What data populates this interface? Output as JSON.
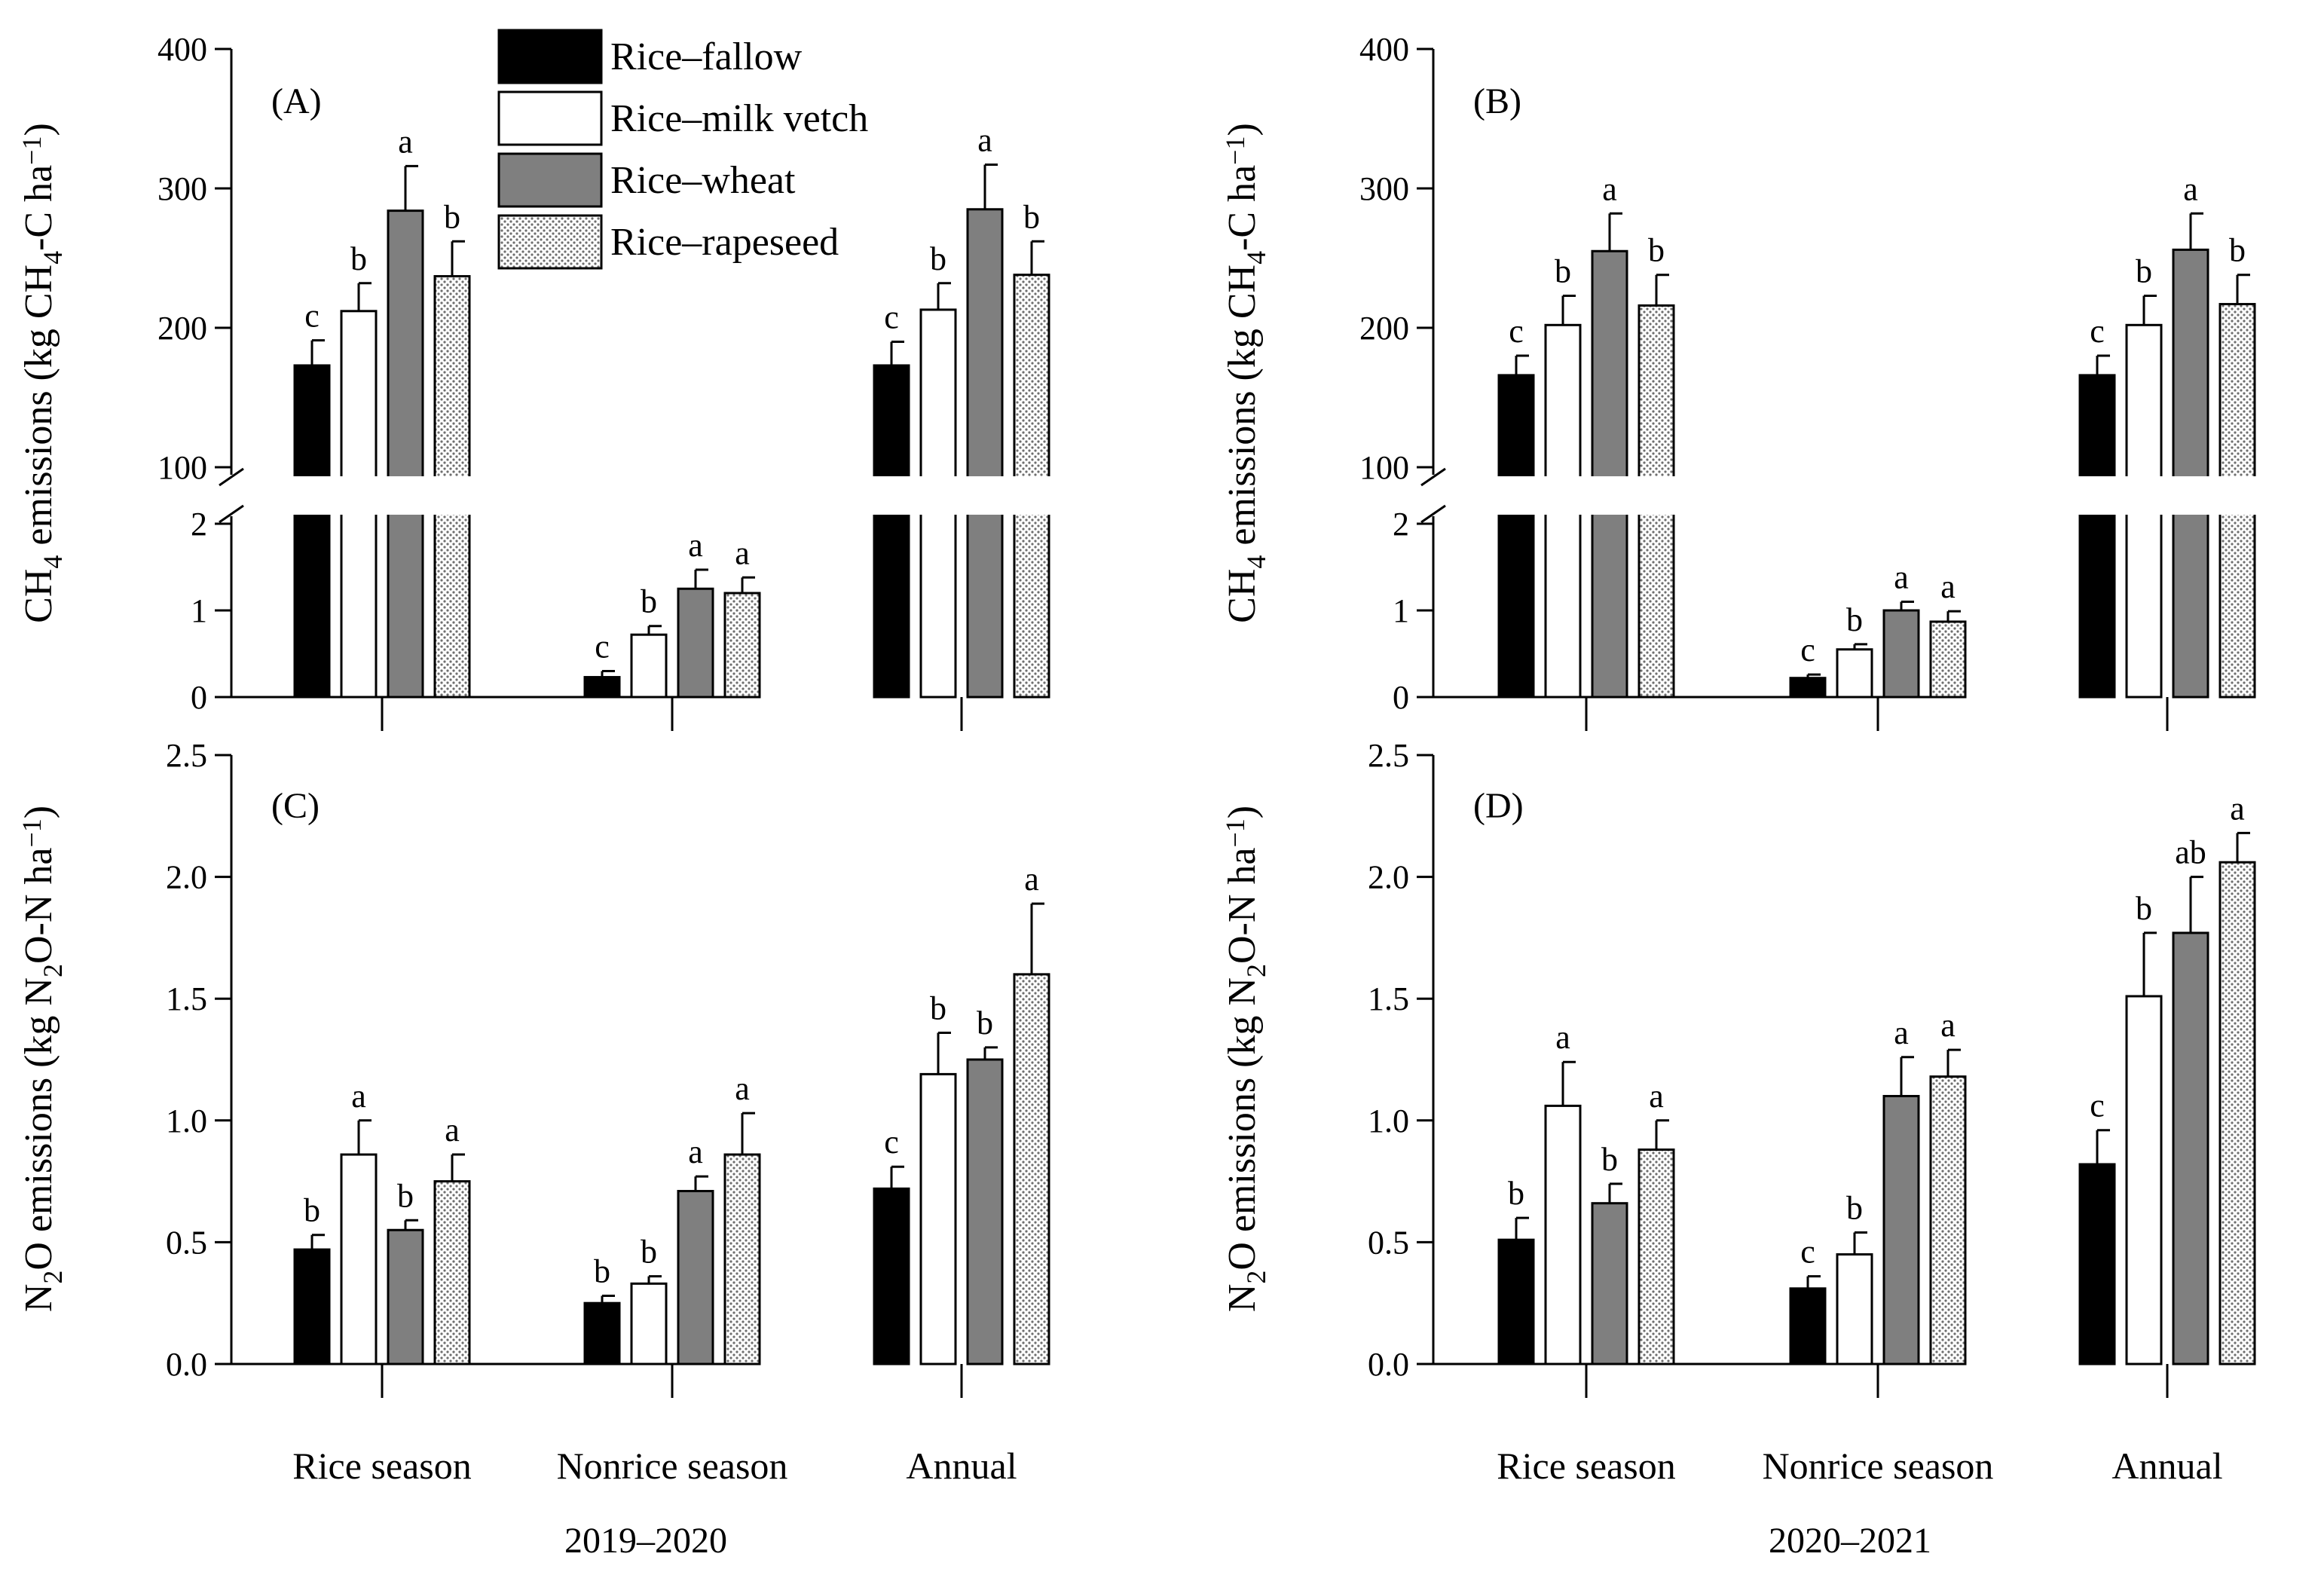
{
  "legend": {
    "items": [
      {
        "label": "Rice–fallow",
        "pattern": "black"
      },
      {
        "label": "Rice–milk vetch",
        "pattern": "white"
      },
      {
        "label": "Rice–wheat",
        "pattern": "gray"
      },
      {
        "label": "Rice–rapeseed",
        "pattern": "dots"
      }
    ]
  },
  "colors": {
    "black": "#000000",
    "white": "#ffffff",
    "gray": "#7f7f7f",
    "dots": "#cfcfcf"
  },
  "axis_labels": {
    "ch4": {
      "pre": "CH",
      "sub1": "4",
      "mid": " emissions (kg CH",
      "sub2": "4",
      "post": "-C ha",
      "sup": "−1",
      "end": ")"
    },
    "n2o": {
      "pre": "N",
      "sub1": "2",
      "mid": "O emissions  (kg N",
      "sub2": "2",
      "post": "O-N ha",
      "sup": "−1",
      "end": ")"
    }
  },
  "categories": [
    "Rice season",
    "Nonrice season",
    "Annual"
  ],
  "year_labels": [
    "2019–2020",
    "2020–2021"
  ],
  "chart_data": [
    {
      "panel": "(A)",
      "type": "bar",
      "period": "2019–2020",
      "categories": [
        "Rice season",
        "Nonrice season",
        "Annual"
      ],
      "ylim_lower": [
        0,
        2
      ],
      "ylim_upper": [
        100,
        400
      ],
      "axis_break": true,
      "yticks_lower": [
        "0",
        "1",
        "2"
      ],
      "yticks_upper": [
        "100",
        "200",
        "300",
        "400"
      ],
      "series": [
        {
          "name": "Rice–fallow",
          "values": [
            173,
            0.23,
            173
          ],
          "errors": [
            18,
            0.07,
            17
          ],
          "letters": [
            "c",
            "c",
            "c"
          ]
        },
        {
          "name": "Rice–milk vetch",
          "values": [
            212,
            0.72,
            213
          ],
          "errors": [
            20,
            0.1,
            19
          ],
          "letters": [
            "b",
            "b",
            "b"
          ]
        },
        {
          "name": "Rice–wheat",
          "values": [
            284,
            1.25,
            285
          ],
          "errors": [
            32,
            0.22,
            32
          ],
          "letters": [
            "a",
            "a",
            "a"
          ]
        },
        {
          "name": "Rice–rapeseed",
          "values": [
            237,
            1.2,
            238
          ],
          "errors": [
            25,
            0.18,
            24
          ],
          "letters": [
            "b",
            "a",
            "b"
          ]
        }
      ]
    },
    {
      "panel": "(B)",
      "type": "bar",
      "period": "2020–2021",
      "categories": [
        "Rice season",
        "Nonrice season",
        "Annual"
      ],
      "ylim_lower": [
        0,
        2
      ],
      "ylim_upper": [
        100,
        400
      ],
      "axis_break": true,
      "yticks_lower": [
        "0",
        "1",
        "2"
      ],
      "yticks_upper": [
        "100",
        "200",
        "300",
        "400"
      ],
      "series": [
        {
          "name": "Rice–fallow",
          "values": [
            166,
            0.22,
            166
          ],
          "errors": [
            14,
            0.04,
            14
          ],
          "letters": [
            "c",
            "c",
            "c"
          ]
        },
        {
          "name": "Rice–milk vetch",
          "values": [
            202,
            0.55,
            202
          ],
          "errors": [
            21,
            0.06,
            21
          ],
          "letters": [
            "b",
            "b",
            "b"
          ]
        },
        {
          "name": "Rice–wheat",
          "values": [
            255,
            1.0,
            256
          ],
          "errors": [
            27,
            0.1,
            26
          ],
          "letters": [
            "a",
            "a",
            "a"
          ]
        },
        {
          "name": "Rice–rapeseed",
          "values": [
            216,
            0.87,
            217
          ],
          "errors": [
            22,
            0.12,
            21
          ],
          "letters": [
            "b",
            "a",
            "b"
          ]
        }
      ]
    },
    {
      "panel": "(C)",
      "type": "bar",
      "period": "2019–2020",
      "categories": [
        "Rice season",
        "Nonrice season",
        "Annual"
      ],
      "ylim": [
        0,
        2.5
      ],
      "yticks": [
        "0.0",
        "0.5",
        "1.0",
        "1.5",
        "2.0",
        "2.5"
      ],
      "series": [
        {
          "name": "Rice–fallow",
          "values": [
            0.47,
            0.25,
            0.72
          ],
          "errors": [
            0.06,
            0.03,
            0.09
          ],
          "letters": [
            "b",
            "b",
            "c"
          ]
        },
        {
          "name": "Rice–milk vetch",
          "values": [
            0.86,
            0.33,
            1.19
          ],
          "errors": [
            0.14,
            0.03,
            0.17
          ],
          "letters": [
            "a",
            "b",
            "b"
          ]
        },
        {
          "name": "Rice–wheat",
          "values": [
            0.55,
            0.71,
            1.25
          ],
          "errors": [
            0.04,
            0.06,
            0.05
          ],
          "letters": [
            "b",
            "a",
            "b"
          ]
        },
        {
          "name": "Rice–rapeseed",
          "values": [
            0.75,
            0.86,
            1.6
          ],
          "errors": [
            0.11,
            0.17,
            0.29
          ],
          "letters": [
            "a",
            "a",
            "a"
          ]
        }
      ]
    },
    {
      "panel": "(D)",
      "type": "bar",
      "period": "2020–2021",
      "categories": [
        "Rice season",
        "Nonrice season",
        "Annual"
      ],
      "ylim": [
        0,
        2.5
      ],
      "yticks": [
        "0.0",
        "0.5",
        "1.0",
        "1.5",
        "2.0",
        "2.5"
      ],
      "series": [
        {
          "name": "Rice–fallow",
          "values": [
            0.51,
            0.31,
            0.82
          ],
          "errors": [
            0.09,
            0.05,
            0.14
          ],
          "letters": [
            "b",
            "c",
            "c"
          ]
        },
        {
          "name": "Rice–milk vetch",
          "values": [
            1.06,
            0.45,
            1.51
          ],
          "errors": [
            0.18,
            0.09,
            0.26
          ],
          "letters": [
            "a",
            "b",
            "b"
          ]
        },
        {
          "name": "Rice–wheat",
          "values": [
            0.66,
            1.1,
            1.77
          ],
          "errors": [
            0.08,
            0.16,
            0.23
          ],
          "letters": [
            "b",
            "a",
            "ab"
          ]
        },
        {
          "name": "Rice–rapeseed",
          "values": [
            0.88,
            1.18,
            2.06
          ],
          "errors": [
            0.12,
            0.11,
            0.12
          ],
          "letters": [
            "a",
            "a",
            "a"
          ]
        }
      ]
    }
  ]
}
